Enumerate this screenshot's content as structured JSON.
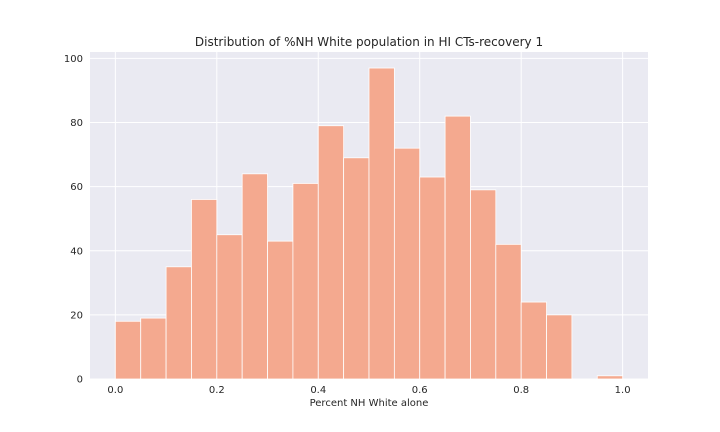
{
  "chart_data": {
    "type": "bar",
    "title": "Distribution of %NH White population in HI CTs-recovery 1",
    "xlabel": "Percent NH White alone",
    "ylabel": "",
    "bin_edges": [
      0.0,
      0.05,
      0.1,
      0.15,
      0.2,
      0.25,
      0.3,
      0.35,
      0.4,
      0.45,
      0.5,
      0.55,
      0.6,
      0.65,
      0.7,
      0.75,
      0.8,
      0.85,
      0.9,
      0.95,
      1.0
    ],
    "values": [
      18,
      19,
      35,
      56,
      45,
      64,
      43,
      61,
      79,
      69,
      97,
      72,
      63,
      82,
      59,
      42,
      24,
      20,
      0,
      1
    ],
    "xlim": [
      -0.05,
      1.05
    ],
    "ylim": [
      0,
      102
    ],
    "x_ticks": [
      0.0,
      0.2,
      0.4,
      0.6,
      0.8,
      1.0
    ],
    "x_tick_labels": [
      "0.0",
      "0.2",
      "0.4",
      "0.6",
      "0.8",
      "1.0"
    ],
    "y_ticks": [
      0,
      20,
      40,
      60,
      80,
      100
    ],
    "y_tick_labels": [
      "0",
      "20",
      "40",
      "60",
      "80",
      "100"
    ],
    "grid": true,
    "colors": {
      "bar": "#f4a98f",
      "bar_edge": "#ffffff",
      "plot_background": "#eaeaf2",
      "grid": "#ffffff",
      "text": "#262626"
    }
  }
}
